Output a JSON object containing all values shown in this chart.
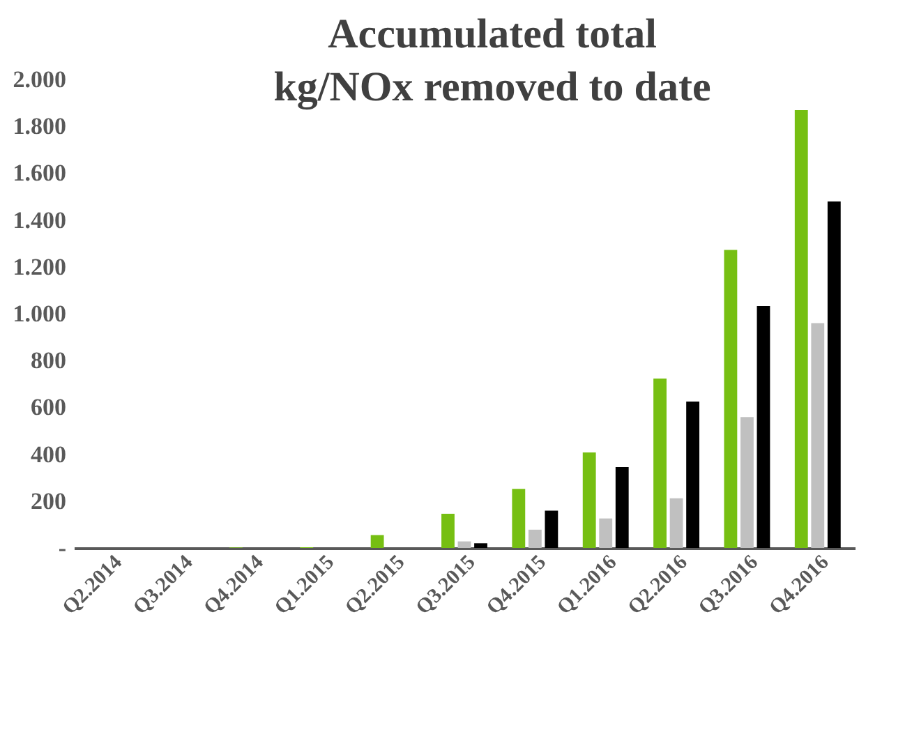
{
  "chart_data": {
    "type": "bar",
    "title": "Accumulated total kg/NOx removed to date",
    "categories": [
      "Q2.2014",
      "Q3.2014",
      "Q4.2014",
      "Q1.2015",
      "Q2.2015",
      "Q3.2015",
      "Q4.2015",
      "Q1.2016",
      "Q2.2016",
      "Q3.2016",
      "Q4.2016"
    ],
    "series": [
      {
        "color": "#76bf12",
        "values": [
          0,
          0,
          2,
          3,
          55,
          146,
          252,
          408,
          723,
          1272,
          1869
        ]
      },
      {
        "color": "#c0c0c0",
        "values": [
          0,
          0,
          0,
          0,
          0,
          28,
          78,
          126,
          212,
          559,
          960
        ]
      },
      {
        "color": "#000000",
        "values": [
          0,
          0,
          0,
          0,
          0,
          20,
          159,
          345,
          625,
          1033,
          1479
        ]
      }
    ],
    "ylim": [
      0,
      2000
    ],
    "yticks": [
      {
        "value": 0,
        "label": "-"
      },
      {
        "value": 200,
        "label": "200"
      },
      {
        "value": 400,
        "label": "400"
      },
      {
        "value": 600,
        "label": "600"
      },
      {
        "value": 800,
        "label": "800"
      },
      {
        "value": 1000,
        "label": "1.000"
      },
      {
        "value": 1200,
        "label": "1.200"
      },
      {
        "value": 1400,
        "label": "1.400"
      },
      {
        "value": 1600,
        "label": "1.600"
      },
      {
        "value": 1800,
        "label": "1.800"
      },
      {
        "value": 2000,
        "label": "2.000"
      }
    ],
    "grid": false,
    "legend": false
  }
}
